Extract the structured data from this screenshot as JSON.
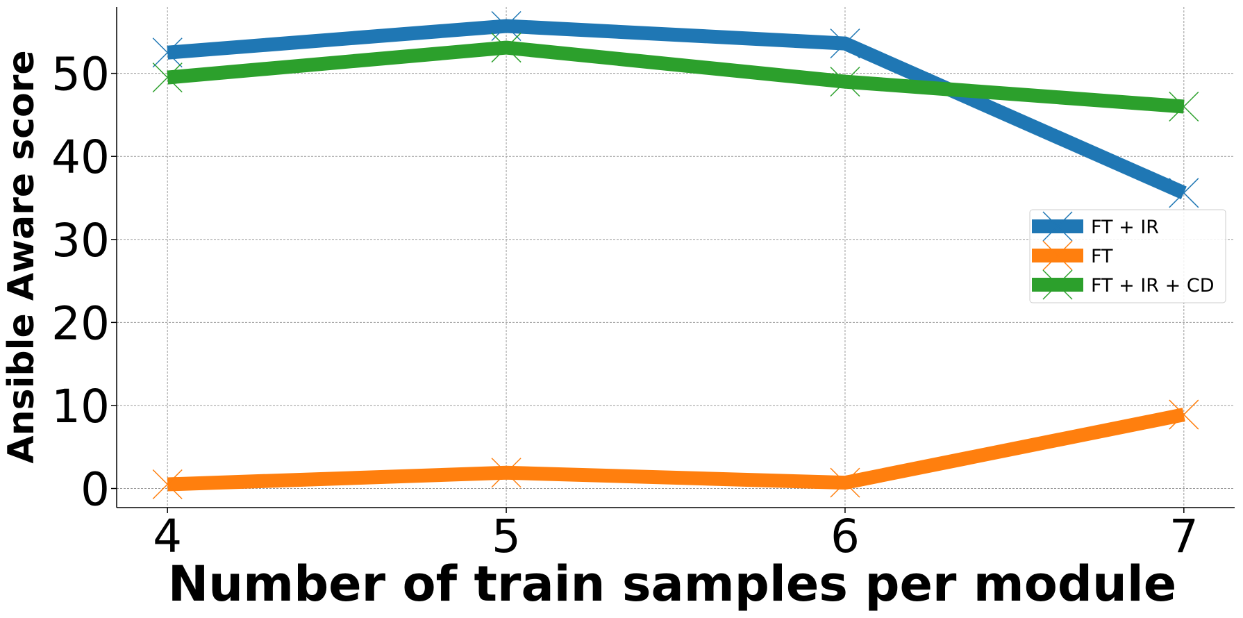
{
  "chart_data": {
    "type": "line",
    "title": "",
    "xlabel": "Number of train samples per module",
    "ylabel": "Ansible Aware score",
    "x": [
      4,
      5,
      6,
      7
    ],
    "xlim": [
      3.85,
      7.15
    ],
    "ylim": [
      -2.3,
      58
    ],
    "xticks": [
      "4",
      "5",
      "6",
      "7"
    ],
    "yticks": [
      0,
      10,
      20,
      30,
      40,
      50
    ],
    "grid": true,
    "legend_position": "center-right",
    "marker": "x",
    "series": [
      {
        "name": "FT + IR",
        "values": [
          52.5,
          55.7,
          53.6,
          35.6
        ],
        "color": "#1f77b4"
      },
      {
        "name": "FT",
        "values": [
          0.5,
          1.9,
          0.7,
          8.9
        ],
        "color": "#ff7f0e"
      },
      {
        "name": "FT + IR + CD",
        "values": [
          49.5,
          53.1,
          49.0,
          46.0
        ],
        "color": "#2ca02c"
      }
    ]
  }
}
